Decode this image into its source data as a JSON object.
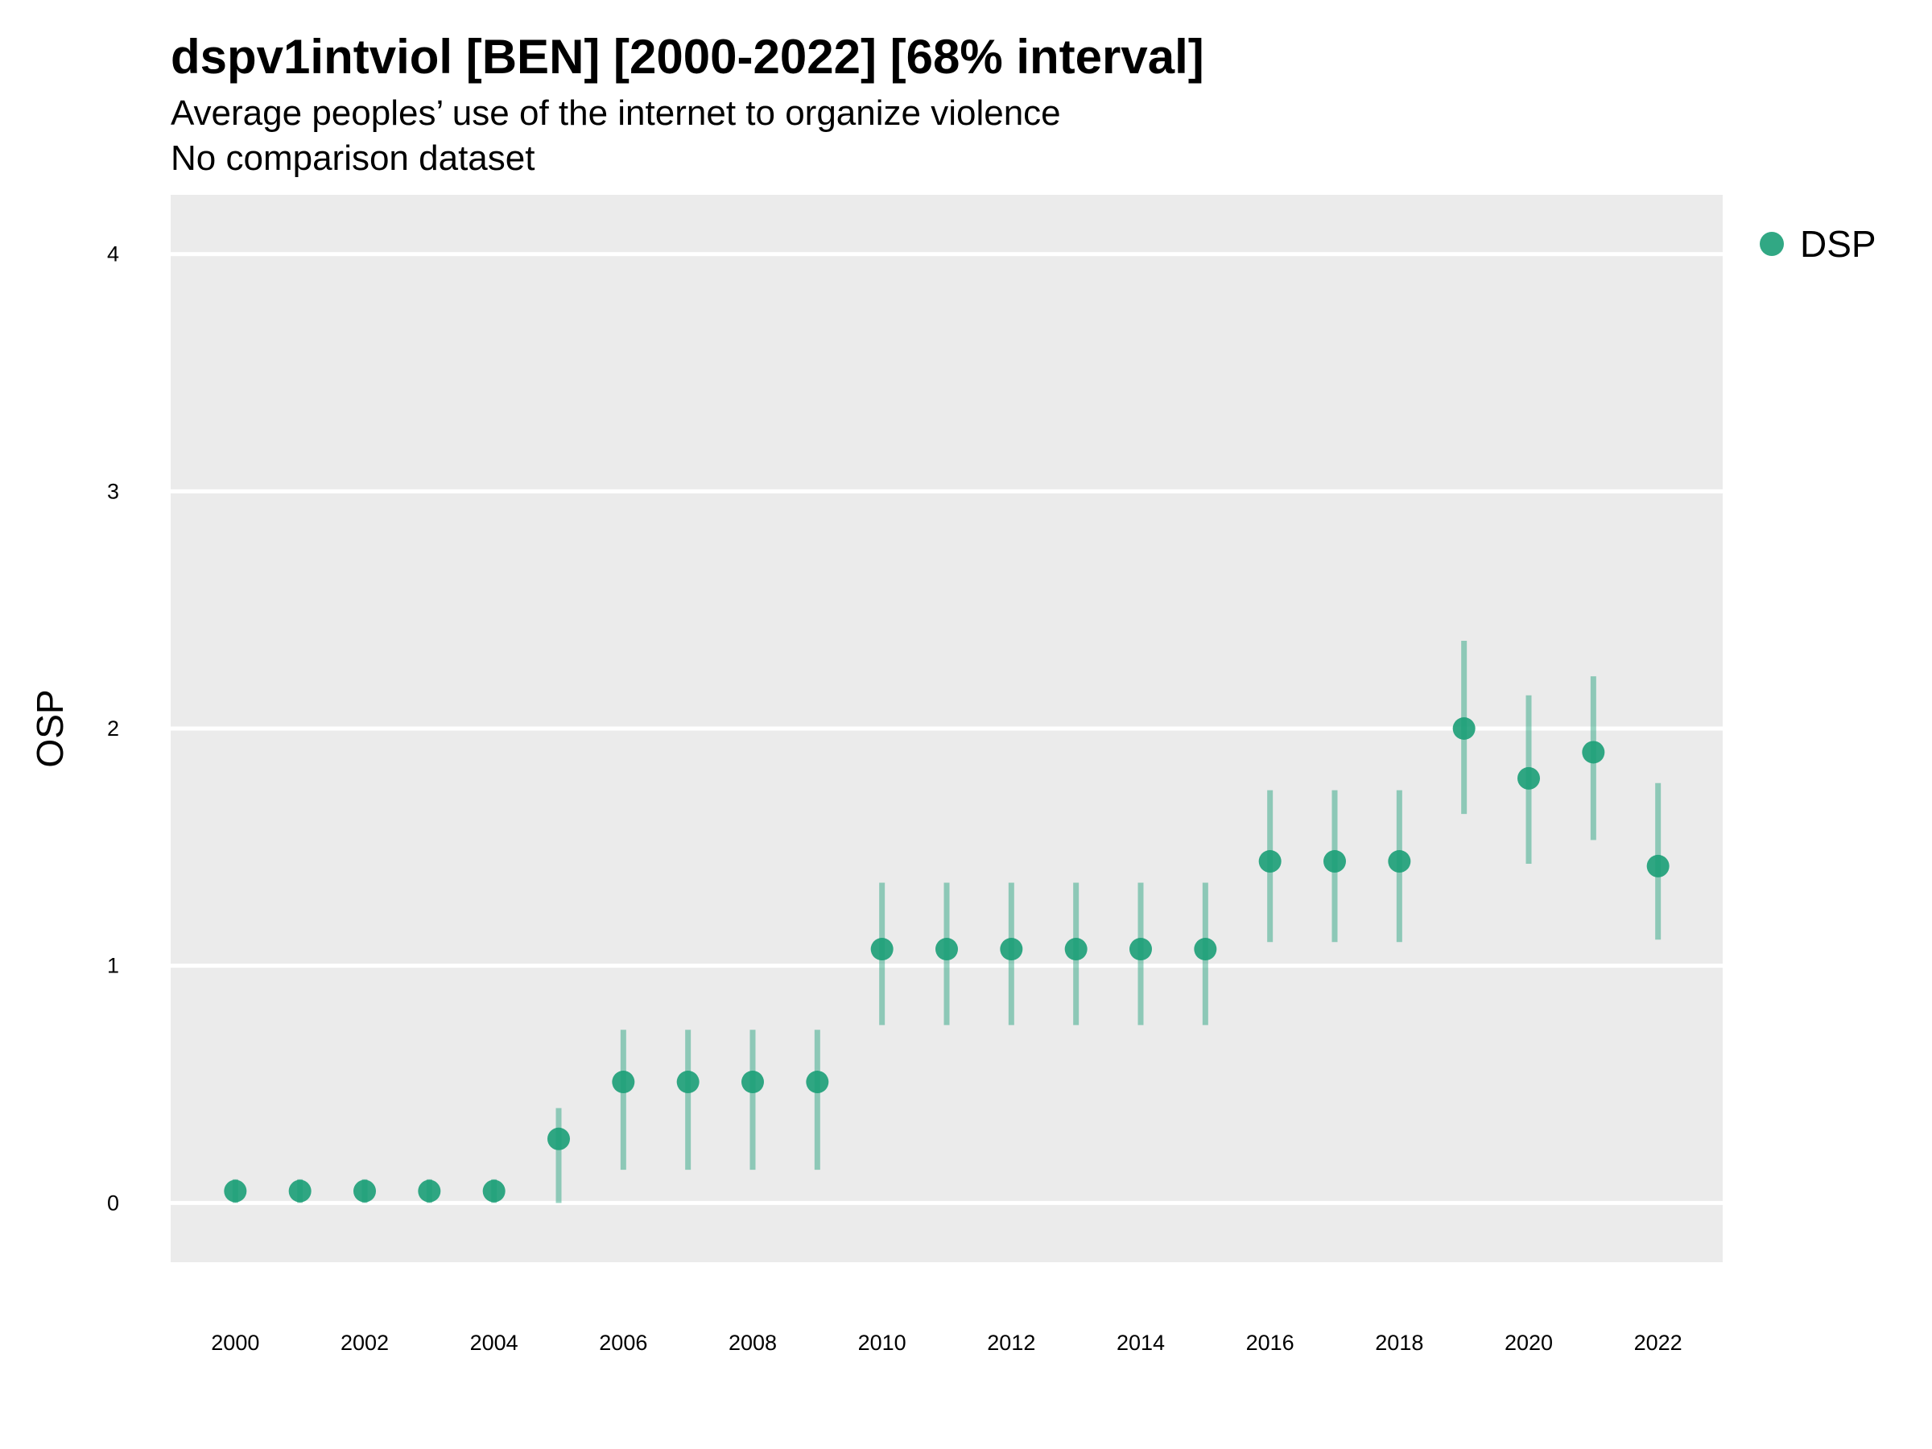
{
  "title": "dspv1intviol [BEN] [2000-2022] [68% interval]",
  "subtitle": "Average peoples’ use of the internet to organize violence",
  "subtitle2": "No comparison dataset",
  "chart_data": {
    "type": "scatter",
    "title": "dspv1intviol [BEN] [2000-2022] [68% interval]",
    "ylabel": "OSP",
    "xlabel": "",
    "x_ticks": [
      "2000",
      "2002",
      "2004",
      "2006",
      "2008",
      "2010",
      "2012",
      "2014",
      "2016",
      "2018",
      "2020",
      "2022"
    ],
    "y_ticks": [
      "0",
      "1",
      "2",
      "3",
      "4"
    ],
    "xlim": [
      1999,
      2023
    ],
    "ylim": [
      -0.25,
      4.25
    ],
    "grid": true,
    "legend_position": "top-right",
    "series": [
      {
        "name": "DSP",
        "color": "#1b9e77",
        "x": [
          2000,
          2001,
          2002,
          2003,
          2004,
          2005,
          2006,
          2007,
          2008,
          2009,
          2010,
          2011,
          2012,
          2013,
          2014,
          2015,
          2016,
          2017,
          2018,
          2019,
          2020,
          2021,
          2022
        ],
        "y": [
          0.05,
          0.05,
          0.05,
          0.05,
          0.05,
          0.27,
          0.51,
          0.51,
          0.51,
          0.51,
          1.07,
          1.07,
          1.07,
          1.07,
          1.07,
          1.07,
          1.44,
          1.44,
          1.44,
          2.0,
          1.79,
          1.9,
          1.42
        ],
        "lower": [
          0.0,
          0.0,
          0.0,
          0.0,
          0.0,
          0.0,
          0.14,
          0.14,
          0.14,
          0.14,
          0.75,
          0.75,
          0.75,
          0.75,
          0.75,
          0.75,
          1.1,
          1.1,
          1.1,
          1.64,
          1.43,
          1.53,
          1.11
        ],
        "upper": [
          0.1,
          0.1,
          0.1,
          0.1,
          0.1,
          0.4,
          0.73,
          0.73,
          0.73,
          0.73,
          1.35,
          1.35,
          1.35,
          1.35,
          1.35,
          1.35,
          1.74,
          1.74,
          1.74,
          2.37,
          2.14,
          2.22,
          1.77
        ]
      }
    ]
  }
}
